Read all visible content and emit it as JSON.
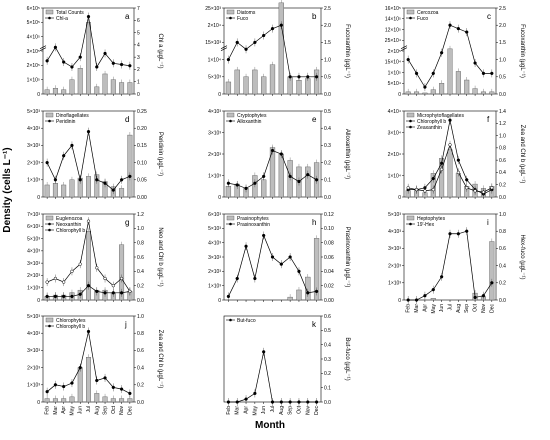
{
  "figure": {
    "y_title": "Density (cells L⁻¹)",
    "x_title": "Month"
  },
  "chart_data": [
    {
      "type": "bar",
      "panel": "a",
      "categories": [
        "Feb",
        "Mar",
        "Apr",
        "May",
        "Jun",
        "Jul",
        "Aug",
        "Sep",
        "Oct",
        "Nov",
        "Dec"
      ],
      "left_axis": {
        "ticks": [
          "0",
          "1×10⁵",
          "2×10⁵",
          "3×10⁵",
          "4×10⁵",
          "5×10⁵",
          "6×10⁵"
        ],
        "broken": true
      },
      "right_axis": {
        "label": "Chl a (µgL⁻¹)",
        "ticks": [
          "0",
          "1",
          "2",
          "3",
          "4",
          "5",
          "6",
          "7"
        ],
        "ylim": [
          0,
          7
        ]
      },
      "series": [
        {
          "name": "Total Counts",
          "kind": "bar",
          "values": [
            0.3,
            0.4,
            0.3,
            1.0,
            1.8,
            5.0,
            0.5,
            1.4,
            1.0,
            0.8,
            0.8
          ]
        },
        {
          "name": "Chl-a",
          "kind": "line",
          "values": [
            2.7,
            3.8,
            2.6,
            2.2,
            3.0,
            6.3,
            2.2,
            3.3,
            2.5,
            2.4,
            2.3
          ]
        }
      ]
    },
    {
      "type": "bar",
      "panel": "b",
      "categories": [
        "Feb",
        "Mar",
        "Apr",
        "May",
        "Jun",
        "Jul",
        "Aug",
        "Sep",
        "Oct",
        "Nov",
        "Dec"
      ],
      "left_axis": {
        "ticks": [
          "0",
          "5×10³",
          "1×10⁴",
          "15×10³",
          "2×10⁴",
          "25×10³"
        ],
        "broken": true
      },
      "right_axis": {
        "label": "Fucoxanthin (µgL⁻¹)",
        "ticks": [
          "0.0",
          "0.5",
          "1.0",
          "1.5",
          "2.0",
          "2.5"
        ],
        "ylim": [
          0,
          2.5
        ]
      },
      "series": [
        {
          "name": "Diatoms",
          "kind": "bar",
          "values": [
            0.7,
            1.4,
            1.0,
            1.4,
            1.0,
            1.7,
            5.3,
            1.0,
            0.8,
            0.9,
            1.4
          ]
        },
        {
          "name": "Fuco",
          "kind": "line",
          "values": [
            1.0,
            1.5,
            1.3,
            1.5,
            1.7,
            1.9,
            2.0,
            0.5,
            0.5,
            0.5,
            0.5
          ]
        }
      ]
    },
    {
      "type": "bar",
      "panel": "c",
      "categories": [
        "Feb",
        "Mar",
        "Apr",
        "May",
        "Jun",
        "Jul",
        "Aug",
        "Sep",
        "Oct",
        "Nov",
        "Dec"
      ],
      "left_axis": {
        "ticks": [
          "0",
          "5×10⁴",
          "1×10⁵",
          "15×10⁴",
          "2×10⁵",
          "25×10⁴",
          "12×10⁵",
          "14×10⁵",
          "16×10⁵"
        ],
        "broken": true
      },
      "right_axis": {
        "label": "Fucoxanthin (µgL⁻¹)",
        "ticks": [
          "0.0",
          "0.5",
          "1.0",
          "1.5",
          "2.0",
          "2.5"
        ],
        "ylim": [
          0,
          2.5
        ]
      },
      "series": [
        {
          "name": "Cercozoa",
          "kind": "bar",
          "values": [
            0.2,
            0.2,
            0.1,
            0.4,
            1.0,
            4.2,
            2.1,
            1.3,
            0.5,
            0.2,
            0.2
          ]
        },
        {
          "name": "Fuco",
          "kind": "line",
          "values": [
            1.0,
            0.6,
            0.2,
            0.6,
            1.2,
            2.0,
            1.9,
            1.8,
            0.9,
            0.6,
            0.6
          ]
        }
      ]
    },
    {
      "type": "bar",
      "panel": "d",
      "categories": [
        "Feb",
        "Mar",
        "Apr",
        "May",
        "Jun",
        "Jul",
        "Aug",
        "Sep",
        "Oct",
        "Nov",
        "Dec"
      ],
      "left_axis": {
        "ticks": [
          "0",
          "1×10³",
          "2×10³",
          "3×10³",
          "4×10³",
          "5×10³"
        ]
      },
      "right_axis": {
        "label": "Peridinin (µgL⁻¹)",
        "ticks": [
          "0.00",
          "0.05",
          "0.10",
          "0.15",
          "0.20",
          "0.25"
        ],
        "ylim": [
          0,
          0.25
        ]
      },
      "series": [
        {
          "name": "Dinoflagellates",
          "kind": "bar",
          "values": [
            0.7,
            0.8,
            0.7,
            1.0,
            1.1,
            1.2,
            1.3,
            0.9,
            0.6,
            0.5,
            3.6
          ]
        },
        {
          "name": "Peridinin",
          "kind": "line",
          "values": [
            0.1,
            0.05,
            0.12,
            0.15,
            0.05,
            0.19,
            0.05,
            0.04,
            0.02,
            0.05,
            0.06
          ]
        }
      ]
    },
    {
      "type": "bar",
      "panel": "e",
      "categories": [
        "Feb",
        "Mar",
        "Apr",
        "May",
        "Jun",
        "Jul",
        "Aug",
        "Sep",
        "Oct",
        "Nov",
        "Dec"
      ],
      "left_axis": {
        "ticks": [
          "0",
          "1×10³",
          "2×10³",
          "3×10³",
          "4×10³"
        ]
      },
      "right_axis": {
        "label": "Alloxanthin (µgL⁻¹)",
        "ticks": [
          "0.0",
          "0.1",
          "0.2",
          "0.3",
          "0.4",
          "0.5"
        ],
        "ylim": [
          0,
          0.5
        ]
      },
      "series": [
        {
          "name": "Cryptophytes",
          "kind": "bar",
          "values": [
            0.5,
            0.6,
            0.4,
            1.0,
            0.8,
            2.3,
            2.0,
            1.7,
            1.4,
            1.4,
            1.6
          ]
        },
        {
          "name": "Alloxanthin",
          "kind": "line",
          "values": [
            0.08,
            0.07,
            0.05,
            0.08,
            0.12,
            0.27,
            0.25,
            0.12,
            0.09,
            0.13,
            0.1
          ]
        }
      ]
    },
    {
      "type": "bar",
      "panel": "f",
      "categories": [
        "Feb",
        "Mar",
        "Apr",
        "May",
        "Jun",
        "Jul",
        "Aug",
        "Sep",
        "Oct",
        "Nov",
        "Dec"
      ],
      "left_axis": {
        "ticks": [
          "0",
          "1×10⁴",
          "2×10⁴",
          "3×10⁴",
          "4×10⁴"
        ]
      },
      "right_axis": {
        "label": "Zea and Chl b (µgL⁻¹)",
        "ticks": [
          "0.0",
          "0.2",
          "0.4",
          "0.6",
          "0.8",
          "1.0",
          "1.2",
          "1.4"
        ],
        "ylim": [
          0,
          1.4
        ]
      },
      "series": [
        {
          "name": "Microphytoflagellates",
          "kind": "bar",
          "values": [
            0.3,
            0.3,
            0.2,
            1.1,
            1.8,
            2.2,
            1.1,
            0.5,
            0.6,
            0.4,
            0.5
          ]
        },
        {
          "name": "Chlorophyll b",
          "kind": "line",
          "values": [
            0.12,
            0.12,
            0.15,
            0.3,
            0.55,
            1.25,
            0.6,
            0.28,
            0.12,
            0.05,
            0.12
          ]
        },
        {
          "name": "Zeaxanthin",
          "kind": "line",
          "values": [
            0.15,
            0.12,
            0.1,
            0.12,
            0.45,
            0.85,
            0.4,
            0.15,
            0.1,
            0.08,
            0.15
          ]
        }
      ]
    },
    {
      "type": "bar",
      "panel": "g",
      "categories": [
        "Feb",
        "Mar",
        "Apr",
        "May",
        "Jun",
        "Jul",
        "Aug",
        "Sep",
        "Oct",
        "Nov",
        "Dec"
      ],
      "left_axis": {
        "ticks": [
          "0",
          "1×10³",
          "2×10³",
          "3×10³",
          "4×10³",
          "5×10³",
          "6×10³",
          "7×10³"
        ]
      },
      "right_axis": {
        "label": "Neo and Chl b (µgL⁻¹)",
        "ticks": [
          "0.0",
          "0.2",
          "0.4",
          "0.6",
          "0.8",
          "1.0",
          "1.2"
        ],
        "ylim": [
          0,
          1.2
        ]
      },
      "series": [
        {
          "name": "Euglenozoa",
          "kind": "bar",
          "values": [
            0.3,
            0.4,
            0.4,
            0.6,
            0.8,
            5.6,
            0.8,
            0.8,
            0.6,
            4.5,
            0.7
          ]
        },
        {
          "name": "Neoxanthin",
          "kind": "line",
          "values": [
            0.05,
            0.05,
            0.05,
            0.05,
            0.08,
            0.2,
            0.12,
            0.1,
            0.1,
            0.1,
            0.12
          ]
        },
        {
          "name": "Chlorophyll b",
          "kind": "line",
          "values": [
            0.25,
            0.3,
            0.25,
            0.4,
            0.5,
            1.1,
            0.45,
            0.3,
            0.2,
            0.3,
            0.12
          ]
        }
      ]
    },
    {
      "type": "bar",
      "panel": "h",
      "categories": [
        "Feb",
        "Mar",
        "Apr",
        "May",
        "Jun",
        "Jul",
        "Aug",
        "Sep",
        "Oct",
        "Nov",
        "Dec"
      ],
      "left_axis": {
        "ticks": [
          "0",
          "1×10³",
          "2×10³",
          "3×10³",
          "4×10³",
          "5×10³",
          "6×10³"
        ]
      },
      "right_axis": {
        "label": "Prasinoxanthin (µgL⁻¹)",
        "ticks": [
          "0.00",
          "0.02",
          "0.04",
          "0.06",
          "0.08",
          "0.10",
          "0.12"
        ],
        "ylim": [
          0,
          0.12
        ]
      },
      "series": [
        {
          "name": "Prasinophytes",
          "kind": "bar",
          "values": [
            0.0,
            0.0,
            0.0,
            0.0,
            0.0,
            0.0,
            0.0,
            0.2,
            0.7,
            1.6,
            4.3
          ]
        },
        {
          "name": "Prasinoxanthin",
          "kind": "line",
          "values": [
            0.005,
            0.03,
            0.075,
            0.03,
            0.09,
            0.06,
            0.05,
            0.06,
            0.04,
            0.01,
            0.012
          ]
        }
      ]
    },
    {
      "type": "bar",
      "panel": "i",
      "categories": [
        "Feb",
        "Mar",
        "Apr",
        "May",
        "Jun",
        "Jul",
        "Aug",
        "Sep",
        "Oct",
        "Nov",
        "Dec"
      ],
      "left_axis": {
        "ticks": [
          "0",
          "1×10³",
          "2×10³",
          "3×10³",
          "4×10³",
          "5×10³"
        ]
      },
      "right_axis": {
        "label": "Hex-fuco (µgL⁻¹)",
        "ticks": [
          "0.0",
          "0.2",
          "0.4",
          "0.6",
          "0.8",
          "1.0"
        ],
        "ylim": [
          0,
          1.0
        ]
      },
      "series": [
        {
          "name": "Heptophytes",
          "kind": "bar",
          "values": [
            0.0,
            0.0,
            0.0,
            0.1,
            0.0,
            0.0,
            0.0,
            0.0,
            0.4,
            0.2,
            3.4
          ]
        },
        {
          "name": "19'-Hex",
          "kind": "line",
          "values": [
            0.0,
            0.0,
            0.05,
            0.12,
            0.27,
            0.77,
            0.77,
            0.8,
            0.03,
            0.05,
            0.2
          ]
        }
      ]
    },
    {
      "type": "bar",
      "panel": "j",
      "categories": [
        "Feb",
        "Mar",
        "Apr",
        "May",
        "Jun",
        "Jul",
        "Aug",
        "Sep",
        "Oct",
        "Nov",
        "Dec"
      ],
      "left_axis": {
        "ticks": [
          "0",
          "1×10³",
          "2×10³",
          "3×10³",
          "4×10³",
          "5×10³"
        ]
      },
      "right_axis": {
        "label": "Zea and Chl b (µgL⁻¹)",
        "ticks": [
          "0.0",
          "0.2",
          "0.4",
          "0.6",
          "0.8",
          "1.0"
        ],
        "ylim": [
          0,
          1.0
        ]
      },
      "series": [
        {
          "name": "Chlorophytes",
          "kind": "bar",
          "values": [
            0.2,
            0.2,
            0.2,
            0.3,
            2.0,
            2.6,
            0.5,
            0.3,
            0.2,
            0.2,
            0.2
          ]
        },
        {
          "name": "Chlorophyll b",
          "kind": "line",
          "values": [
            0.12,
            0.2,
            0.18,
            0.22,
            0.4,
            0.82,
            0.25,
            0.28,
            0.17,
            0.15,
            0.1
          ]
        }
      ]
    },
    {
      "type": "line",
      "panel": "k",
      "categories": [
        "Feb",
        "Mar",
        "Apr",
        "May",
        "Jun",
        "Jul",
        "Aug",
        "Sep",
        "Oct",
        "Nov",
        "Dec"
      ],
      "right_axis": {
        "label": "But-fuco (µgL⁻¹)",
        "ticks": [
          "0.0",
          "0.1",
          "0.2",
          "0.3",
          "0.4",
          "0.5",
          "0.6"
        ],
        "ylim": [
          0,
          0.6
        ]
      },
      "series": [
        {
          "name": "But-fuco",
          "kind": "line",
          "values": [
            0.0,
            0.0,
            0.02,
            0.06,
            0.35,
            0.0,
            0.0,
            0.0,
            0.0,
            0.0,
            0.0
          ]
        }
      ]
    }
  ]
}
